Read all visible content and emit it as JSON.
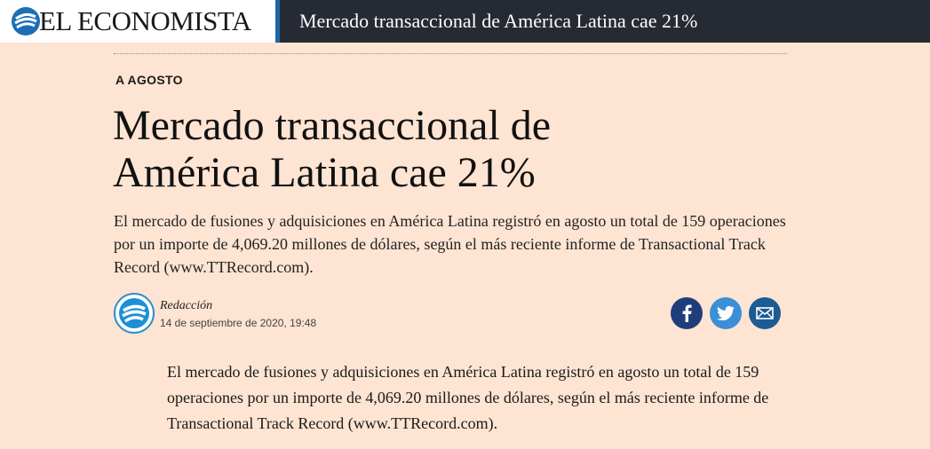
{
  "header": {
    "logo_text": "EL ECONOMISTA",
    "article_title": "Mercado transaccional de América Latina cae 21%"
  },
  "article": {
    "kicker": "A AGOSTO",
    "headline": "Mercado transaccional de América Latina cae 21%",
    "standfirst": "El mercado de fusiones y adquisiciones en América Latina registró en agosto un total de 159 operaciones por un importe de 4,069.20 millones de dólares, según el más reciente informe de Transactional Track Record (www.TTRecord.com).",
    "author": "Redacción",
    "date": "14 de septiembre de 2020, 19:48",
    "body": "El mercado de fusiones y adquisiciones en América Latina registró en agosto un total de 159 operaciones por un importe de 4,069.20 millones de dólares, según el más reciente informe de Transactional Track Record (www.TTRecord.com)."
  },
  "share": {
    "facebook_icon": "facebook-icon",
    "twitter_icon": "twitter-icon",
    "email_icon": "email-icon"
  },
  "colors": {
    "page_background": "#fde4d3",
    "topbar_background": "#262a33",
    "accent": "#1c68a8",
    "facebook": "#1f3d7a",
    "twitter": "#3b8fd6",
    "email": "#1d5b94"
  }
}
